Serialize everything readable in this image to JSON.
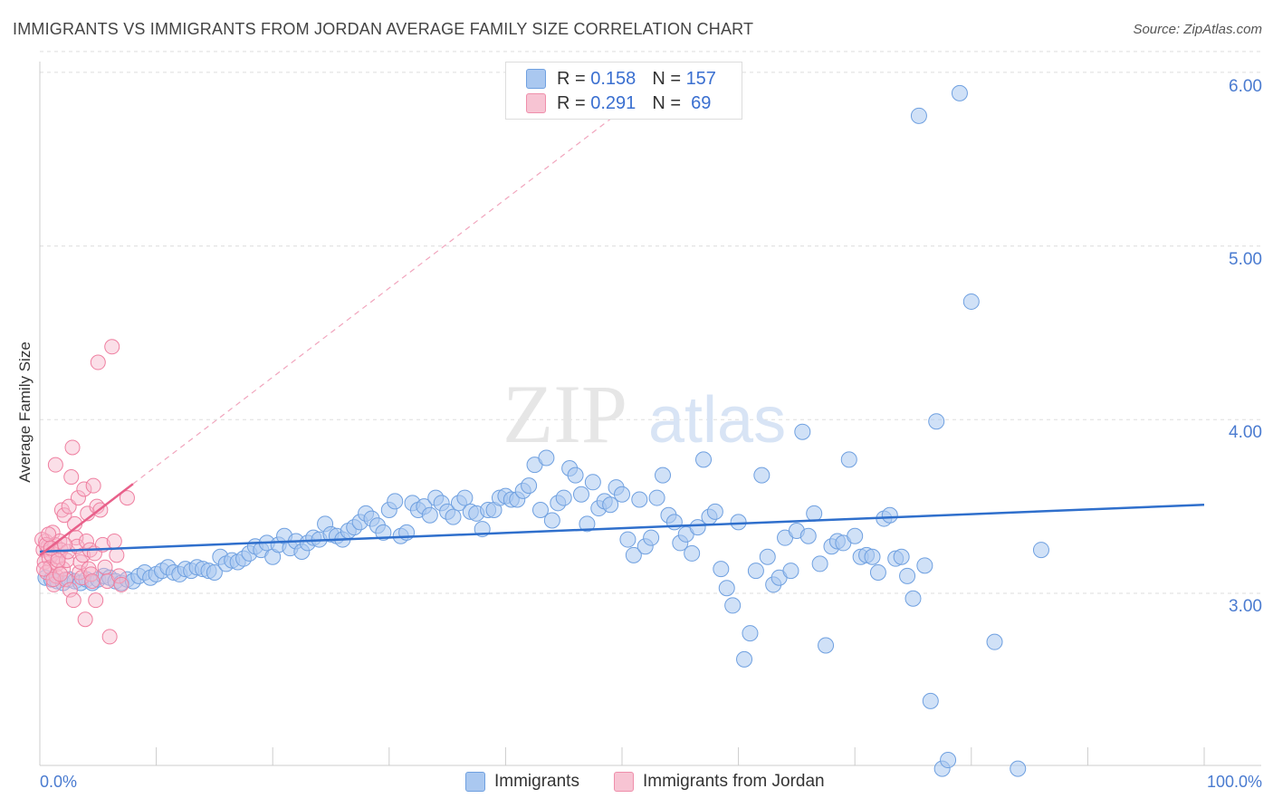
{
  "title": "IMMIGRANTS VS IMMIGRANTS FROM JORDAN AVERAGE FAMILY SIZE CORRELATION CHART",
  "source": "Source: ZipAtlas.com",
  "watermark": {
    "zip": "ZIP",
    "atlas": "atlas"
  },
  "colors": {
    "blue": "#6fa0e0",
    "blue_fill": "#aac8f0",
    "blue_line": "#2f6fcc",
    "pink": "#ef7fa0",
    "pink_fill": "#f7b8cb",
    "pink_line": "#e8608a",
    "axis_text": "#4a7bd0",
    "grid": "#dddddd"
  },
  "legend_top": {
    "rows": [
      {
        "r_label": "R = ",
        "r_value": "0.158",
        "n_label": "N = ",
        "n_value": "157"
      },
      {
        "r_label": "R = ",
        "r_value": "0.291",
        "n_label": "N = ",
        "n_value": " 69"
      }
    ]
  },
  "legend_bottom": {
    "immigrants": "Immigrants",
    "jordan": "Immigrants from Jordan"
  },
  "chart_data": {
    "type": "scatter",
    "title": "IMMIGRANTS VS IMMIGRANTS FROM JORDAN AVERAGE FAMILY SIZE CORRELATION CHART",
    "xlabel": "",
    "ylabel": "Average Family Size",
    "xlim": [
      0,
      100
    ],
    "ylim": [
      2.0,
      6.12
    ],
    "x_tick_labels": [
      "0.0%",
      "100.0%"
    ],
    "y_ticks": [
      3.0,
      4.0,
      5.0,
      6.0
    ],
    "y_tick_labels": [
      "3.00",
      "4.00",
      "5.00",
      "6.00"
    ],
    "grid": "horizontal dashed",
    "legend_position": "top-center",
    "series": [
      {
        "name": "Immigrants",
        "r": 0.158,
        "n": 157,
        "trend": {
          "x": [
            0,
            100
          ],
          "y": [
            3.24,
            3.51
          ]
        },
        "points": [
          [
            0.5,
            3.09
          ],
          [
            1,
            3.08
          ],
          [
            1.5,
            3.07
          ],
          [
            2,
            3.06
          ],
          [
            2.5,
            3.08
          ],
          [
            3,
            3.07
          ],
          [
            3.5,
            3.06
          ],
          [
            4,
            3.08
          ],
          [
            4.5,
            3.06
          ],
          [
            5,
            3.08
          ],
          [
            5.5,
            3.1
          ],
          [
            6,
            3.09
          ],
          [
            6.5,
            3.07
          ],
          [
            7,
            3.06
          ],
          [
            7.5,
            3.08
          ],
          [
            8,
            3.07
          ],
          [
            8.5,
            3.1
          ],
          [
            9,
            3.12
          ],
          [
            9.5,
            3.09
          ],
          [
            10,
            3.11
          ],
          [
            10.5,
            3.13
          ],
          [
            11,
            3.15
          ],
          [
            11.5,
            3.12
          ],
          [
            12,
            3.11
          ],
          [
            12.5,
            3.14
          ],
          [
            13,
            3.13
          ],
          [
            13.5,
            3.15
          ],
          [
            14,
            3.14
          ],
          [
            14.5,
            3.13
          ],
          [
            15,
            3.12
          ],
          [
            15.5,
            3.21
          ],
          [
            16,
            3.17
          ],
          [
            16.5,
            3.19
          ],
          [
            17,
            3.18
          ],
          [
            17.5,
            3.2
          ],
          [
            18,
            3.23
          ],
          [
            18.5,
            3.27
          ],
          [
            19,
            3.25
          ],
          [
            19.5,
            3.29
          ],
          [
            20,
            3.21
          ],
          [
            20.5,
            3.28
          ],
          [
            21,
            3.33
          ],
          [
            21.5,
            3.26
          ],
          [
            22,
            3.3
          ],
          [
            22.5,
            3.24
          ],
          [
            23,
            3.29
          ],
          [
            23.5,
            3.32
          ],
          [
            24,
            3.31
          ],
          [
            24.5,
            3.4
          ],
          [
            25,
            3.34
          ],
          [
            25.5,
            3.33
          ],
          [
            26,
            3.31
          ],
          [
            26.5,
            3.36
          ],
          [
            27,
            3.38
          ],
          [
            27.5,
            3.41
          ],
          [
            28,
            3.46
          ],
          [
            28.5,
            3.43
          ],
          [
            29,
            3.39
          ],
          [
            29.5,
            3.35
          ],
          [
            30,
            3.48
          ],
          [
            30.5,
            3.53
          ],
          [
            31,
            3.33
          ],
          [
            31.5,
            3.35
          ],
          [
            32,
            3.52
          ],
          [
            32.5,
            3.48
          ],
          [
            33,
            3.5
          ],
          [
            33.5,
            3.45
          ],
          [
            34,
            3.55
          ],
          [
            34.5,
            3.52
          ],
          [
            35,
            3.47
          ],
          [
            35.5,
            3.44
          ],
          [
            36,
            3.52
          ],
          [
            36.5,
            3.55
          ],
          [
            37,
            3.47
          ],
          [
            37.5,
            3.46
          ],
          [
            38,
            3.37
          ],
          [
            38.5,
            3.48
          ],
          [
            39,
            3.48
          ],
          [
            39.5,
            3.55
          ],
          [
            40,
            3.56
          ],
          [
            40.5,
            3.54
          ],
          [
            41,
            3.54
          ],
          [
            41.5,
            3.59
          ],
          [
            42,
            3.62
          ],
          [
            42.5,
            3.74
          ],
          [
            43,
            3.48
          ],
          [
            43.5,
            3.78
          ],
          [
            44,
            3.42
          ],
          [
            44.5,
            3.52
          ],
          [
            45,
            3.55
          ],
          [
            45.5,
            3.72
          ],
          [
            46,
            3.68
          ],
          [
            46.5,
            3.57
          ],
          [
            47,
            3.4
          ],
          [
            47.5,
            3.64
          ],
          [
            48,
            3.49
          ],
          [
            48.5,
            3.53
          ],
          [
            49,
            3.51
          ],
          [
            49.5,
            3.61
          ],
          [
            50,
            3.57
          ],
          [
            50.5,
            3.31
          ],
          [
            51,
            3.22
          ],
          [
            51.5,
            3.54
          ],
          [
            52,
            3.27
          ],
          [
            52.5,
            3.32
          ],
          [
            53,
            3.55
          ],
          [
            53.5,
            3.68
          ],
          [
            54,
            3.45
          ],
          [
            54.5,
            3.41
          ],
          [
            55,
            3.29
          ],
          [
            55.5,
            3.34
          ],
          [
            56,
            3.23
          ],
          [
            56.5,
            3.38
          ],
          [
            57,
            3.77
          ],
          [
            57.5,
            3.44
          ],
          [
            58,
            3.47
          ],
          [
            58.5,
            3.14
          ],
          [
            59,
            3.03
          ],
          [
            59.5,
            2.93
          ],
          [
            60,
            3.41
          ],
          [
            60.5,
            2.62
          ],
          [
            61,
            2.77
          ],
          [
            61.5,
            3.13
          ],
          [
            62,
            3.68
          ],
          [
            62.5,
            3.21
          ],
          [
            63,
            3.05
          ],
          [
            63.5,
            3.09
          ],
          [
            64,
            3.32
          ],
          [
            64.5,
            3.13
          ],
          [
            65,
            3.36
          ],
          [
            65.5,
            3.93
          ],
          [
            66,
            3.33
          ],
          [
            66.5,
            3.46
          ],
          [
            67,
            3.17
          ],
          [
            67.5,
            2.7
          ],
          [
            68,
            3.27
          ],
          [
            68.5,
            3.3
          ],
          [
            69,
            3.29
          ],
          [
            69.5,
            3.77
          ],
          [
            70,
            3.33
          ],
          [
            70.5,
            3.21
          ],
          [
            71,
            3.22
          ],
          [
            71.5,
            3.21
          ],
          [
            72,
            3.12
          ],
          [
            72.5,
            3.43
          ],
          [
            73,
            3.45
          ],
          [
            73.5,
            3.2
          ],
          [
            74,
            3.21
          ],
          [
            74.5,
            3.1
          ],
          [
            75,
            2.97
          ],
          [
            75.5,
            5.75
          ],
          [
            76,
            3.16
          ],
          [
            76.5,
            2.38
          ],
          [
            77,
            3.99
          ],
          [
            77.5,
            1.99
          ],
          [
            78,
            2.04
          ],
          [
            79,
            5.88
          ],
          [
            80,
            4.68
          ],
          [
            82,
            2.72
          ],
          [
            84,
            1.99
          ],
          [
            86,
            3.25
          ]
        ]
      },
      {
        "name": "Immigrants from Jordan",
        "r": 0.291,
        "n": 69,
        "trend": {
          "x": [
            0,
            8
          ],
          "y": [
            3.22,
            3.63
          ]
        },
        "points": [
          [
            0.3,
            3.25
          ],
          [
            0.4,
            3.18
          ],
          [
            0.5,
            3.3
          ],
          [
            0.6,
            3.12
          ],
          [
            0.7,
            3.27
          ],
          [
            0.8,
            3.2
          ],
          [
            0.9,
            3.15
          ],
          [
            1,
            3.22
          ],
          [
            1.1,
            3.35
          ],
          [
            1.2,
            3.05
          ],
          [
            1.3,
            3.28
          ],
          [
            1.4,
            3.1
          ],
          [
            1.5,
            3.17
          ],
          [
            1.6,
            3.21
          ],
          [
            1.7,
            3.3
          ],
          [
            1.8,
            3.25
          ],
          [
            1.9,
            3.48
          ],
          [
            2,
            3.14
          ],
          [
            2.1,
            3.45
          ],
          [
            2.2,
            3.08
          ],
          [
            2.3,
            3.19
          ],
          [
            2.4,
            3.24
          ],
          [
            2.5,
            3.5
          ],
          [
            2.6,
            3.02
          ],
          [
            2.7,
            3.67
          ],
          [
            2.8,
            3.84
          ],
          [
            2.9,
            2.96
          ],
          [
            3,
            3.4
          ],
          [
            3.1,
            3.32
          ],
          [
            3.2,
            3.27
          ],
          [
            3.3,
            3.55
          ],
          [
            3.4,
            3.12
          ],
          [
            3.5,
            3.18
          ],
          [
            3.6,
            3.09
          ],
          [
            3.7,
            3.22
          ],
          [
            3.8,
            3.6
          ],
          [
            3.9,
            2.85
          ],
          [
            4,
            3.3
          ],
          [
            4.1,
            3.46
          ],
          [
            4.2,
            3.14
          ],
          [
            4.3,
            3.25
          ],
          [
            4.4,
            3.11
          ],
          [
            4.5,
            3.07
          ],
          [
            4.6,
            3.62
          ],
          [
            4.7,
            3.23
          ],
          [
            4.8,
            2.96
          ],
          [
            4.9,
            3.5
          ],
          [
            5,
            4.33
          ],
          [
            5.2,
            3.48
          ],
          [
            5.4,
            3.28
          ],
          [
            5.6,
            3.15
          ],
          [
            5.8,
            3.07
          ],
          [
            6,
            2.75
          ],
          [
            6.2,
            4.42
          ],
          [
            6.4,
            3.3
          ],
          [
            6.6,
            3.22
          ],
          [
            6.8,
            3.1
          ],
          [
            7,
            3.05
          ],
          [
            7.5,
            3.55
          ],
          [
            0.2,
            3.31
          ],
          [
            0.35,
            3.14
          ],
          [
            0.55,
            3.28
          ],
          [
            0.75,
            3.34
          ],
          [
            0.95,
            3.26
          ],
          [
            1.15,
            3.08
          ],
          [
            1.35,
            3.74
          ],
          [
            1.55,
            3.19
          ],
          [
            1.75,
            3.11
          ],
          [
            2.15,
            3.28
          ]
        ]
      }
    ]
  }
}
